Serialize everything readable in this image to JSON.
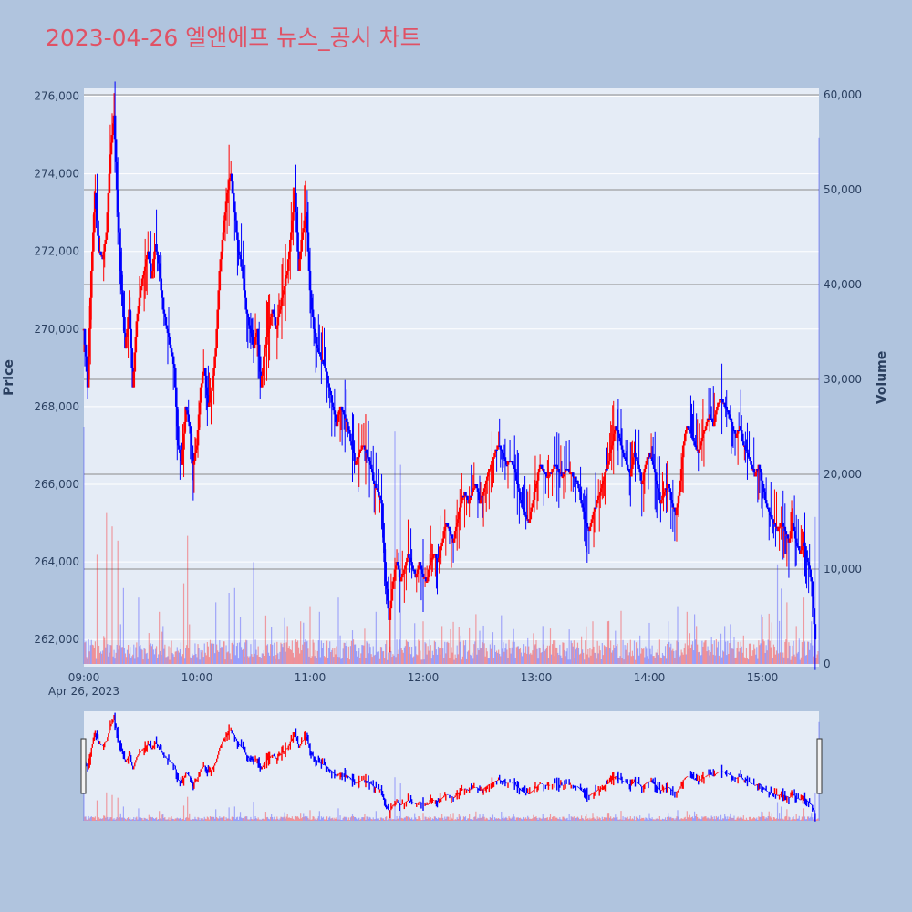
{
  "chart_data": {
    "type": "candlestick",
    "title": "2023-04-26 엘앤에프 뉴스_공시 차트",
    "ylabel_left": "Price",
    "ylabel_right": "Volume",
    "x_tick_labels": [
      "09:00",
      "10:00",
      "11:00",
      "12:00",
      "13:00",
      "14:00",
      "15:00"
    ],
    "x_date_label": "Apr 26, 2023",
    "x_range_minutes": [
      "09:00",
      "15:30"
    ],
    "price_ylim": [
      261300,
      276200
    ],
    "price_ticks": [
      "262,000",
      "264,000",
      "266,000",
      "268,000",
      "270,000",
      "272,000",
      "274,000",
      "276,000"
    ],
    "volume_ylim": [
      0,
      60000
    ],
    "volume_ticks": [
      "0",
      "10,000",
      "20,000",
      "30,000",
      "40,000",
      "50,000",
      "60,000"
    ],
    "grid": true,
    "rangeslider": true,
    "colors": {
      "up": "#ff0000",
      "down": "#0000ff",
      "page_bg": "#b0c4de",
      "plot_bg": "#e5ecf6",
      "title": "#e05265"
    },
    "price_path": [
      [
        "09:00",
        270000
      ],
      [
        "09:02",
        268500
      ],
      [
        "09:04",
        271500
      ],
      [
        "09:06",
        273500
      ],
      [
        "09:08",
        272000
      ],
      [
        "09:10",
        271800
      ],
      [
        "09:12",
        272500
      ],
      [
        "09:14",
        274500
      ],
      [
        "09:16",
        275500
      ],
      [
        "09:18",
        273000
      ],
      [
        "09:20",
        271000
      ],
      [
        "09:22",
        269500
      ],
      [
        "09:24",
        270500
      ],
      [
        "09:26",
        268500
      ],
      [
        "09:28",
        270200
      ],
      [
        "09:30",
        271000
      ],
      [
        "09:32",
        271500
      ],
      [
        "09:34",
        272000
      ],
      [
        "09:36",
        271300
      ],
      [
        "09:38",
        272200
      ],
      [
        "09:40",
        271500
      ],
      [
        "09:42",
        270500
      ],
      [
        "09:44",
        270000
      ],
      [
        "09:46",
        269500
      ],
      [
        "09:48",
        269000
      ],
      [
        "09:50",
        267000
      ],
      [
        "09:52",
        266500
      ],
      [
        "09:54",
        268000
      ],
      [
        "09:56",
        267500
      ],
      [
        "09:58",
        266500
      ],
      [
        "10:00",
        267000
      ],
      [
        "10:02",
        268500
      ],
      [
        "10:04",
        269000
      ],
      [
        "10:06",
        268000
      ],
      [
        "10:08",
        268500
      ],
      [
        "10:10",
        269500
      ],
      [
        "10:12",
        271500
      ],
      [
        "10:14",
        272500
      ],
      [
        "10:16",
        273500
      ],
      [
        "10:18",
        274000
      ],
      [
        "10:20",
        273000
      ],
      [
        "10:22",
        272000
      ],
      [
        "10:24",
        271500
      ],
      [
        "10:26",
        270500
      ],
      [
        "10:28",
        270000
      ],
      [
        "10:30",
        269500
      ],
      [
        "10:32",
        270000
      ],
      [
        "10:34",
        268500
      ],
      [
        "10:36",
        269500
      ],
      [
        "10:38",
        270000
      ],
      [
        "10:40",
        270500
      ],
      [
        "10:42",
        270000
      ],
      [
        "10:44",
        270500
      ],
      [
        "10:46",
        271000
      ],
      [
        "10:48",
        271500
      ],
      [
        "10:50",
        272500
      ],
      [
        "10:52",
        273500
      ],
      [
        "10:54",
        271500
      ],
      [
        "10:56",
        272500
      ],
      [
        "10:58",
        273000
      ],
      [
        "11:00",
        271000
      ],
      [
        "11:02",
        270000
      ],
      [
        "11:04",
        269500
      ],
      [
        "11:06",
        269200
      ],
      [
        "11:08",
        269000
      ],
      [
        "11:10",
        268500
      ],
      [
        "11:12",
        268000
      ],
      [
        "11:14",
        267500
      ],
      [
        "11:16",
        268000
      ],
      [
        "11:18",
        267800
      ],
      [
        "11:20",
        267500
      ],
      [
        "11:22",
        267000
      ],
      [
        "11:24",
        266500
      ],
      [
        "11:26",
        266800
      ],
      [
        "11:28",
        267000
      ],
      [
        "11:30",
        266800
      ],
      [
        "11:32",
        266500
      ],
      [
        "11:34",
        266000
      ],
      [
        "11:36",
        265800
      ],
      [
        "11:38",
        265500
      ],
      [
        "11:40",
        263500
      ],
      [
        "11:42",
        262500
      ],
      [
        "11:44",
        263500
      ],
      [
        "11:46",
        264000
      ],
      [
        "11:48",
        263500
      ],
      [
        "11:50",
        263800
      ],
      [
        "11:52",
        264200
      ],
      [
        "11:54",
        263900
      ],
      [
        "11:56",
        263600
      ],
      [
        "11:58",
        264000
      ],
      [
        "12:00",
        263600
      ],
      [
        "12:02",
        263500
      ],
      [
        "12:04",
        264000
      ],
      [
        "12:06",
        264200
      ],
      [
        "12:08",
        264000
      ],
      [
        "12:10",
        264500
      ],
      [
        "12:12",
        265000
      ],
      [
        "12:14",
        264800
      ],
      [
        "12:16",
        264500
      ],
      [
        "12:18",
        265000
      ],
      [
        "12:20",
        265500
      ],
      [
        "12:22",
        265800
      ],
      [
        "12:24",
        265500
      ],
      [
        "12:26",
        265800
      ],
      [
        "12:28",
        266000
      ],
      [
        "12:30",
        265500
      ],
      [
        "12:32",
        265800
      ],
      [
        "12:34",
        266200
      ],
      [
        "12:36",
        266500
      ],
      [
        "12:38",
        266800
      ],
      [
        "12:40",
        267000
      ],
      [
        "12:42",
        266800
      ],
      [
        "12:44",
        266500
      ],
      [
        "12:46",
        266600
      ],
      [
        "12:48",
        266500
      ],
      [
        "12:50",
        266000
      ],
      [
        "12:52",
        265500
      ],
      [
        "12:54",
        265200
      ],
      [
        "12:56",
        265000
      ],
      [
        "12:58",
        265500
      ],
      [
        "13:00",
        266000
      ],
      [
        "13:02",
        266500
      ],
      [
        "13:04",
        266300
      ],
      [
        "13:06",
        266200
      ],
      [
        "13:08",
        266300
      ],
      [
        "13:10",
        266500
      ],
      [
        "13:12",
        266300
      ],
      [
        "13:14",
        266200
      ],
      [
        "13:16",
        266400
      ],
      [
        "13:18",
        266300
      ],
      [
        "13:20",
        266200
      ],
      [
        "13:22",
        266000
      ],
      [
        "13:24",
        265500
      ],
      [
        "13:26",
        265000
      ],
      [
        "13:28",
        264800
      ],
      [
        "13:30",
        265200
      ],
      [
        "13:32",
        265500
      ],
      [
        "13:34",
        265800
      ],
      [
        "13:36",
        266200
      ],
      [
        "13:38",
        266500
      ],
      [
        "13:40",
        267000
      ],
      [
        "13:42",
        267500
      ],
      [
        "13:44",
        267200
      ],
      [
        "13:46",
        266800
      ],
      [
        "13:48",
        266500
      ],
      [
        "13:50",
        266200
      ],
      [
        "13:52",
        266800
      ],
      [
        "13:54",
        266500
      ],
      [
        "13:56",
        266000
      ],
      [
        "13:58",
        266500
      ],
      [
        "14:00",
        266800
      ],
      [
        "14:02",
        266500
      ],
      [
        "14:04",
        266000
      ],
      [
        "14:06",
        265500
      ],
      [
        "14:08",
        265800
      ],
      [
        "14:10",
        266000
      ],
      [
        "14:12",
        265500
      ],
      [
        "14:14",
        265200
      ],
      [
        "14:16",
        265800
      ],
      [
        "14:18",
        267000
      ],
      [
        "14:20",
        267500
      ],
      [
        "14:22",
        267300
      ],
      [
        "14:24",
        267000
      ],
      [
        "14:26",
        266800
      ],
      [
        "14:28",
        267200
      ],
      [
        "14:30",
        267500
      ],
      [
        "14:32",
        267800
      ],
      [
        "14:34",
        267500
      ],
      [
        "14:36",
        268000
      ],
      [
        "14:38",
        268200
      ],
      [
        "14:40",
        268000
      ],
      [
        "14:42",
        267800
      ],
      [
        "14:44",
        267500
      ],
      [
        "14:46",
        267200
      ],
      [
        "14:48",
        267500
      ],
      [
        "14:50",
        267000
      ],
      [
        "14:52",
        266800
      ],
      [
        "14:54",
        266500
      ],
      [
        "14:56",
        266200
      ],
      [
        "14:58",
        266500
      ],
      [
        "15:00",
        266000
      ],
      [
        "15:02",
        265500
      ],
      [
        "15:04",
        265200
      ],
      [
        "15:06",
        265000
      ],
      [
        "15:08",
        264800
      ],
      [
        "15:10",
        265000
      ],
      [
        "15:12",
        264800
      ],
      [
        "15:14",
        264500
      ],
      [
        "15:16",
        265000
      ],
      [
        "15:18",
        264500
      ],
      [
        "15:20",
        264200
      ],
      [
        "15:22",
        264500
      ],
      [
        "15:24",
        264000
      ],
      [
        "15:26",
        263500
      ],
      [
        "15:28",
        262000
      ]
    ],
    "volume_spikes": [
      [
        "09:00",
        25000
      ],
      [
        "09:07",
        11500
      ],
      [
        "09:12",
        16000
      ],
      [
        "09:15",
        14500
      ],
      [
        "09:18",
        13000
      ],
      [
        "09:21",
        8000
      ],
      [
        "09:29",
        7000
      ],
      [
        "09:40",
        5500
      ],
      [
        "09:42",
        4000
      ],
      [
        "09:53",
        8500
      ],
      [
        "09:55",
        13500
      ],
      [
        "10:10",
        6500
      ],
      [
        "10:17",
        7500
      ],
      [
        "10:20",
        8000
      ],
      [
        "10:23",
        5000
      ],
      [
        "10:30",
        10000
      ],
      [
        "10:48",
        4000
      ],
      [
        "10:55",
        4500
      ],
      [
        "11:00",
        6000
      ],
      [
        "11:05",
        5500
      ],
      [
        "11:15",
        7000
      ],
      [
        "11:35",
        5500
      ],
      [
        "11:45",
        24500
      ],
      [
        "11:48",
        21000
      ],
      [
        "12:00",
        4500
      ],
      [
        "12:10",
        4000
      ],
      [
        "12:20",
        3000
      ],
      [
        "12:30",
        3500
      ],
      [
        "13:00",
        2500
      ],
      [
        "13:30",
        4500
      ],
      [
        "13:38",
        4500
      ],
      [
        "13:42",
        3500
      ],
      [
        "13:55",
        3000
      ],
      [
        "14:10",
        4500
      ],
      [
        "14:15",
        6000
      ],
      [
        "14:20",
        5500
      ],
      [
        "14:25",
        4000
      ],
      [
        "14:30",
        2500
      ],
      [
        "14:40",
        4000
      ],
      [
        "14:50",
        3000
      ],
      [
        "15:00",
        5000
      ],
      [
        "15:08",
        10500
      ],
      [
        "15:10",
        5500
      ],
      [
        "15:13",
        6500
      ],
      [
        "15:18",
        4000
      ],
      [
        "15:22",
        7000
      ],
      [
        "15:26",
        4500
      ],
      [
        "15:28",
        15500
      ],
      [
        "15:30",
        55500
      ]
    ]
  }
}
